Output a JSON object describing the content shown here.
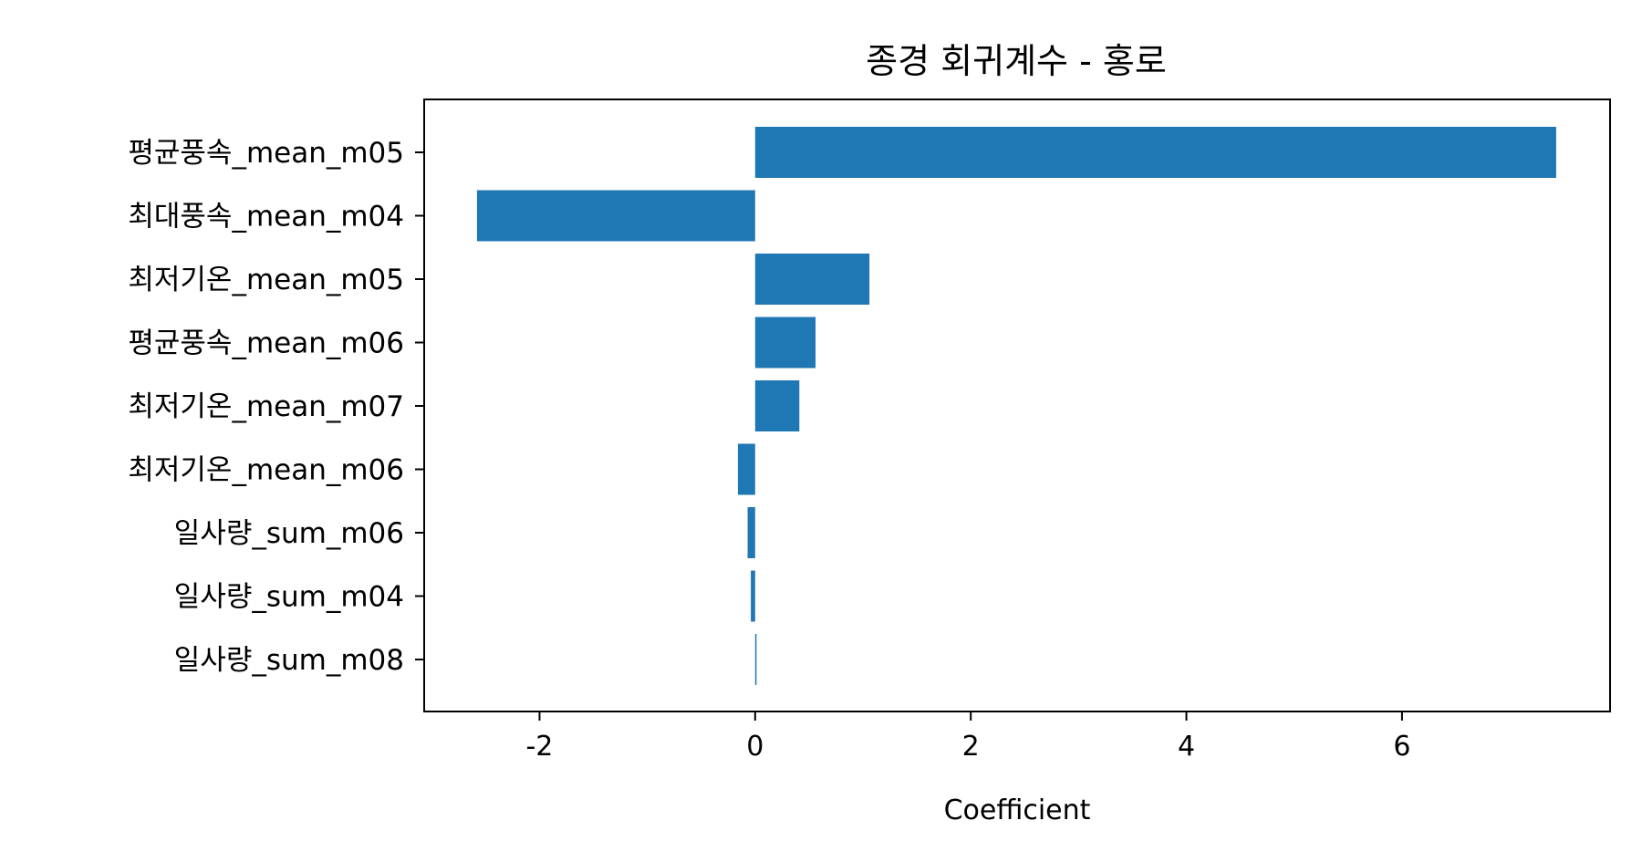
{
  "chart_data": {
    "type": "bar",
    "orientation": "horizontal",
    "title": "종경 회귀계수 - 홍로",
    "xlabel": "Coefficient",
    "ylabel": "",
    "xlim": [
      -3.07,
      7.93
    ],
    "xticks": [
      -2,
      0,
      2,
      4,
      6
    ],
    "xtick_labels": [
      "-2",
      "0",
      "2",
      "4",
      "6"
    ],
    "categories": [
      "평균풍속_mean_m05",
      "최대풍속_mean_m04",
      "최저기온_mean_m05",
      "평균풍속_mean_m06",
      "최저기온_mean_m07",
      "최저기온_mean_m06",
      "일사량_sum_m06",
      "일사량_sum_m04",
      "일사량_sum_m08"
    ],
    "values": [
      7.43,
      -2.58,
      1.06,
      0.56,
      0.41,
      -0.16,
      -0.07,
      -0.04,
      0.01
    ],
    "bar_color": "#1f77b4",
    "grid": false,
    "legend": "none"
  }
}
